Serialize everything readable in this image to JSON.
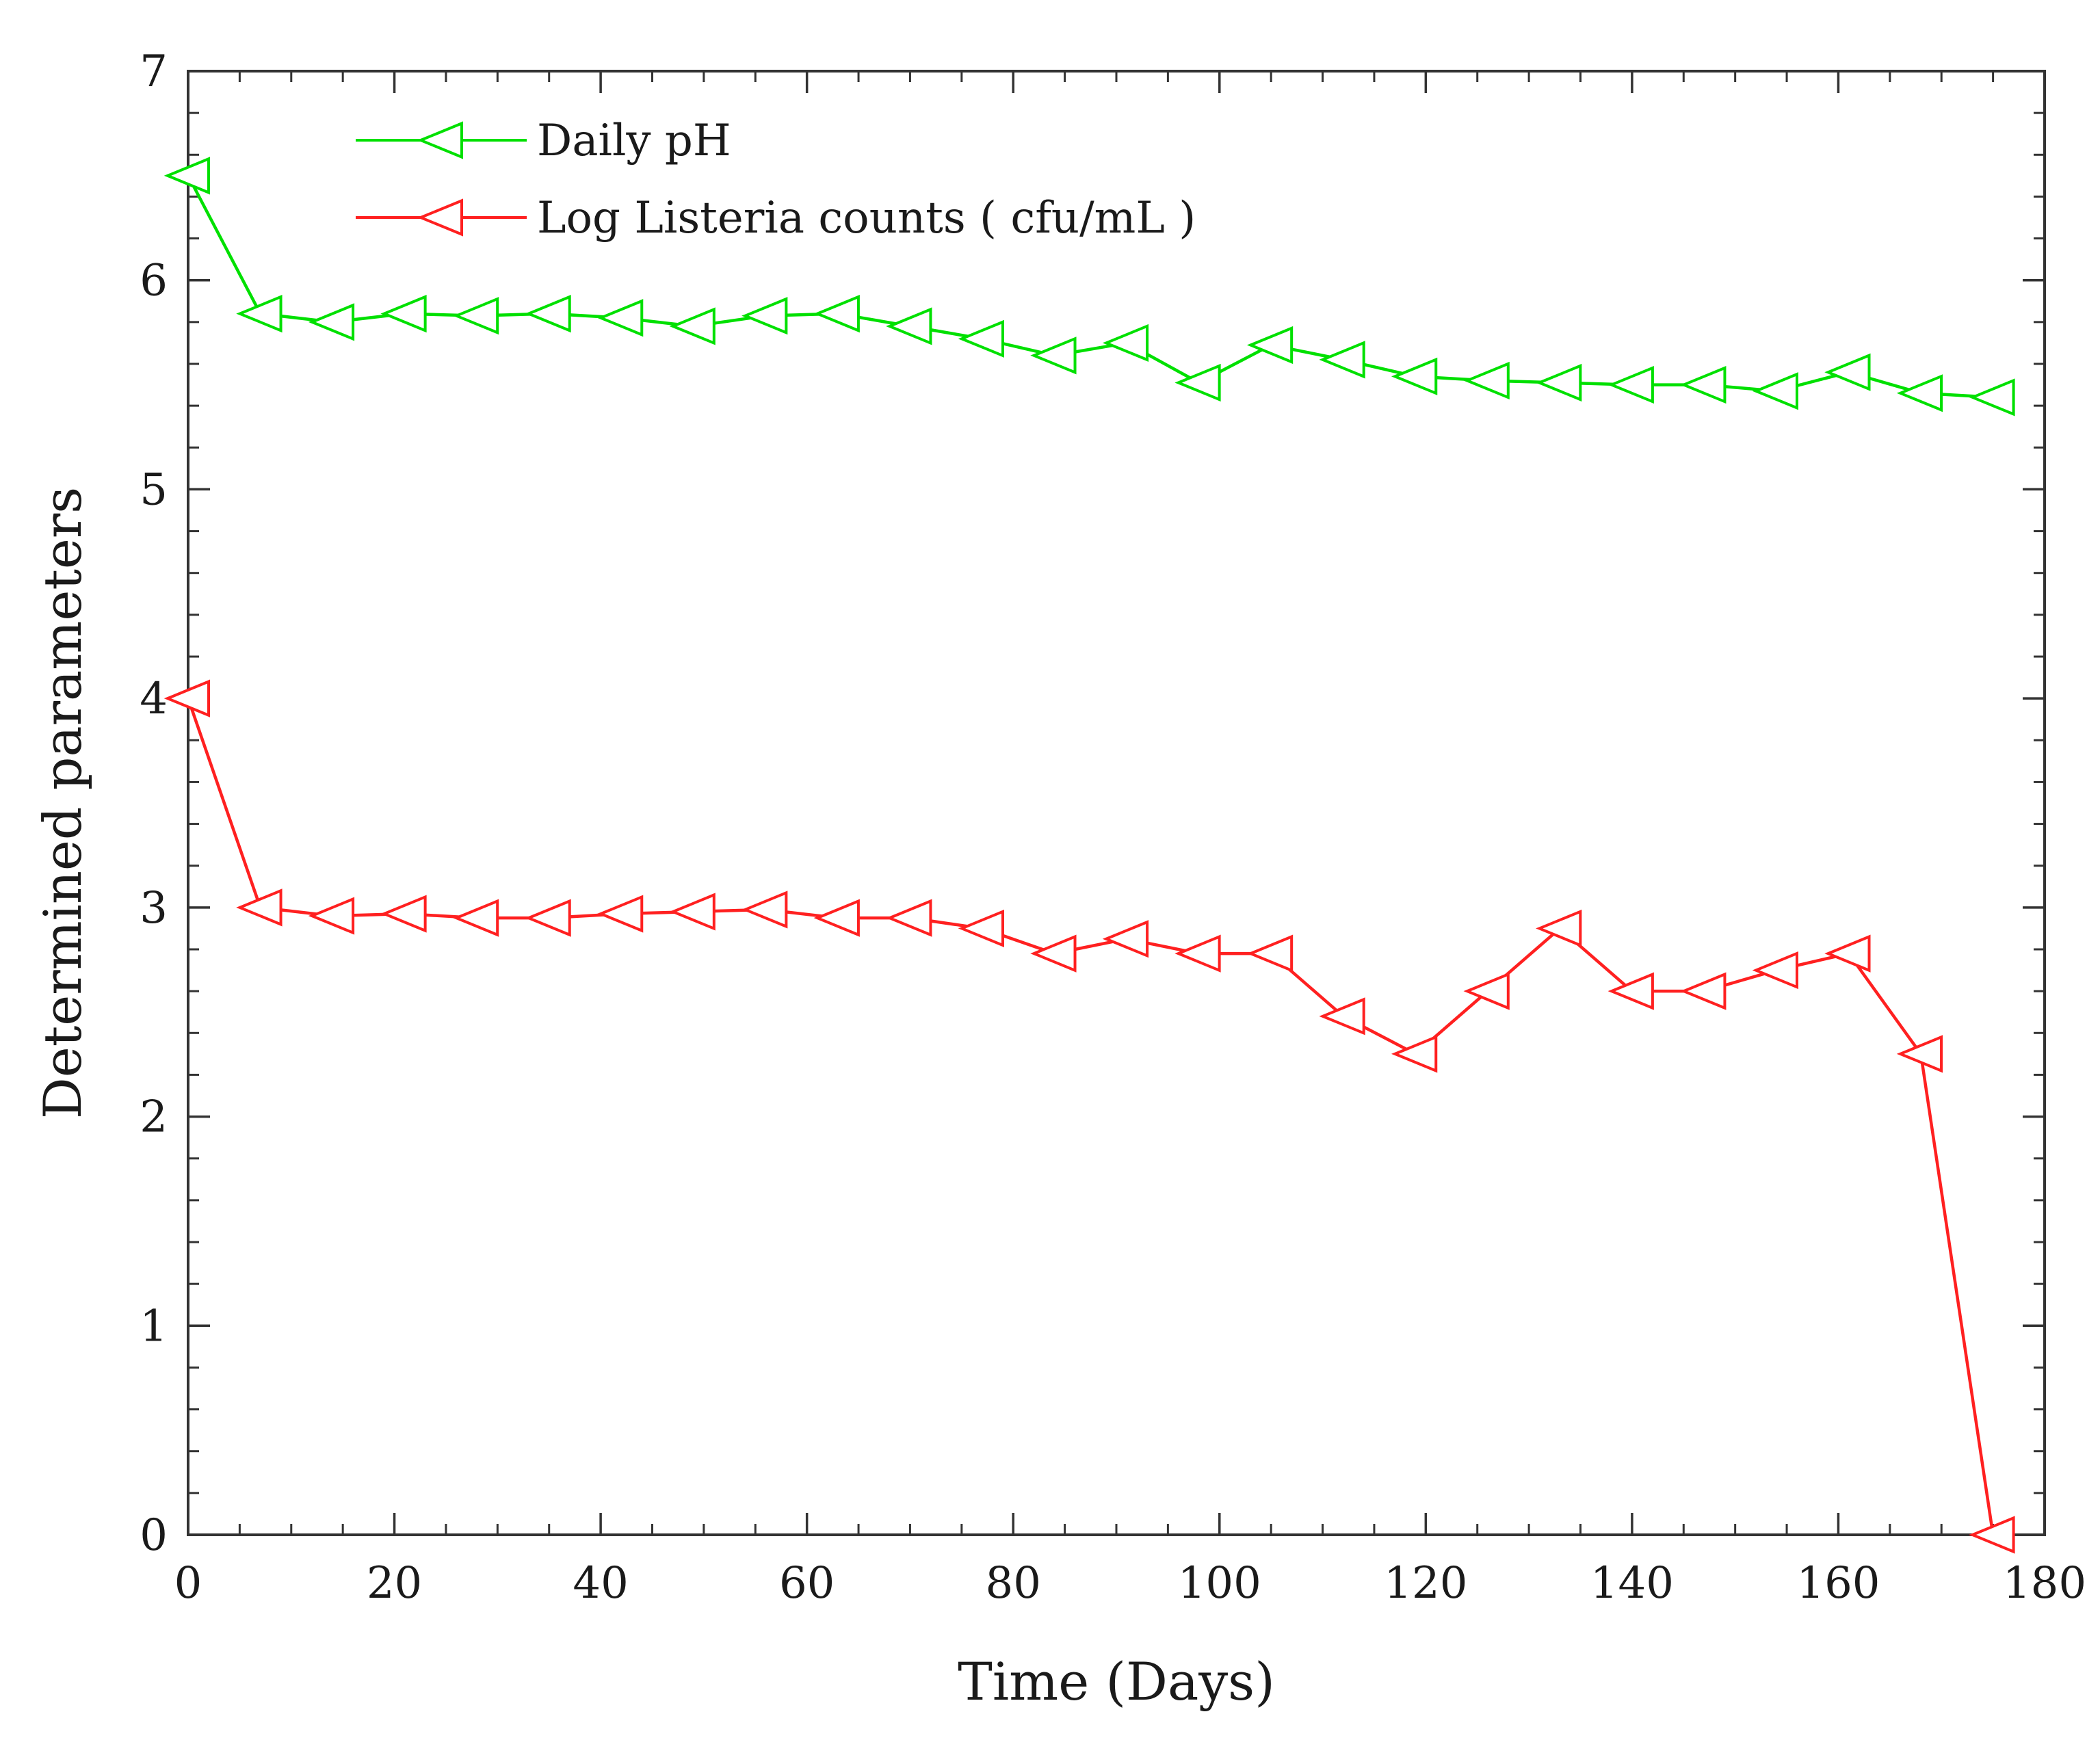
{
  "chart_data": {
    "type": "line",
    "title": "",
    "xlabel": "Time (Days)",
    "ylabel": "Determined parameters",
    "xlim": [
      0,
      180
    ],
    "ylim": [
      0,
      7
    ],
    "x_ticks": [
      "0",
      "20",
      "40",
      "60",
      "80",
      "100",
      "120",
      "140",
      "160",
      "180"
    ],
    "y_ticks": [
      "0",
      "1",
      "2",
      "3",
      "4",
      "5",
      "6",
      "7"
    ],
    "legend_position": "top-left",
    "marker": "left-triangle",
    "series": [
      {
        "name": "Daily pH",
        "color": "#00e000",
        "x": [
          0,
          7,
          14,
          21,
          28,
          35,
          42,
          49,
          56,
          63,
          70,
          77,
          84,
          91,
          98,
          105,
          112,
          119,
          126,
          133,
          140,
          147,
          154,
          161,
          168,
          175
        ],
        "y": [
          6.5,
          5.84,
          5.8,
          5.84,
          5.83,
          5.84,
          5.82,
          5.78,
          5.83,
          5.84,
          5.78,
          5.72,
          5.64,
          5.7,
          5.51,
          5.69,
          5.62,
          5.54,
          5.52,
          5.51,
          5.5,
          5.5,
          5.47,
          5.56,
          5.46,
          5.44
        ]
      },
      {
        "name": "Log Listeria counts ( cfu/mL )",
        "color": "#ff2020",
        "x": [
          0,
          7,
          14,
          21,
          28,
          35,
          42,
          49,
          56,
          63,
          70,
          77,
          84,
          91,
          98,
          105,
          112,
          119,
          126,
          133,
          140,
          147,
          154,
          161,
          168,
          175
        ],
        "y": [
          4.0,
          3.0,
          2.96,
          2.97,
          2.95,
          2.95,
          2.97,
          2.98,
          2.99,
          2.95,
          2.95,
          2.9,
          2.78,
          2.85,
          2.78,
          2.78,
          2.48,
          2.3,
          2.6,
          2.9,
          2.6,
          2.6,
          2.7,
          2.78,
          2.3,
          0.0
        ]
      }
    ]
  }
}
